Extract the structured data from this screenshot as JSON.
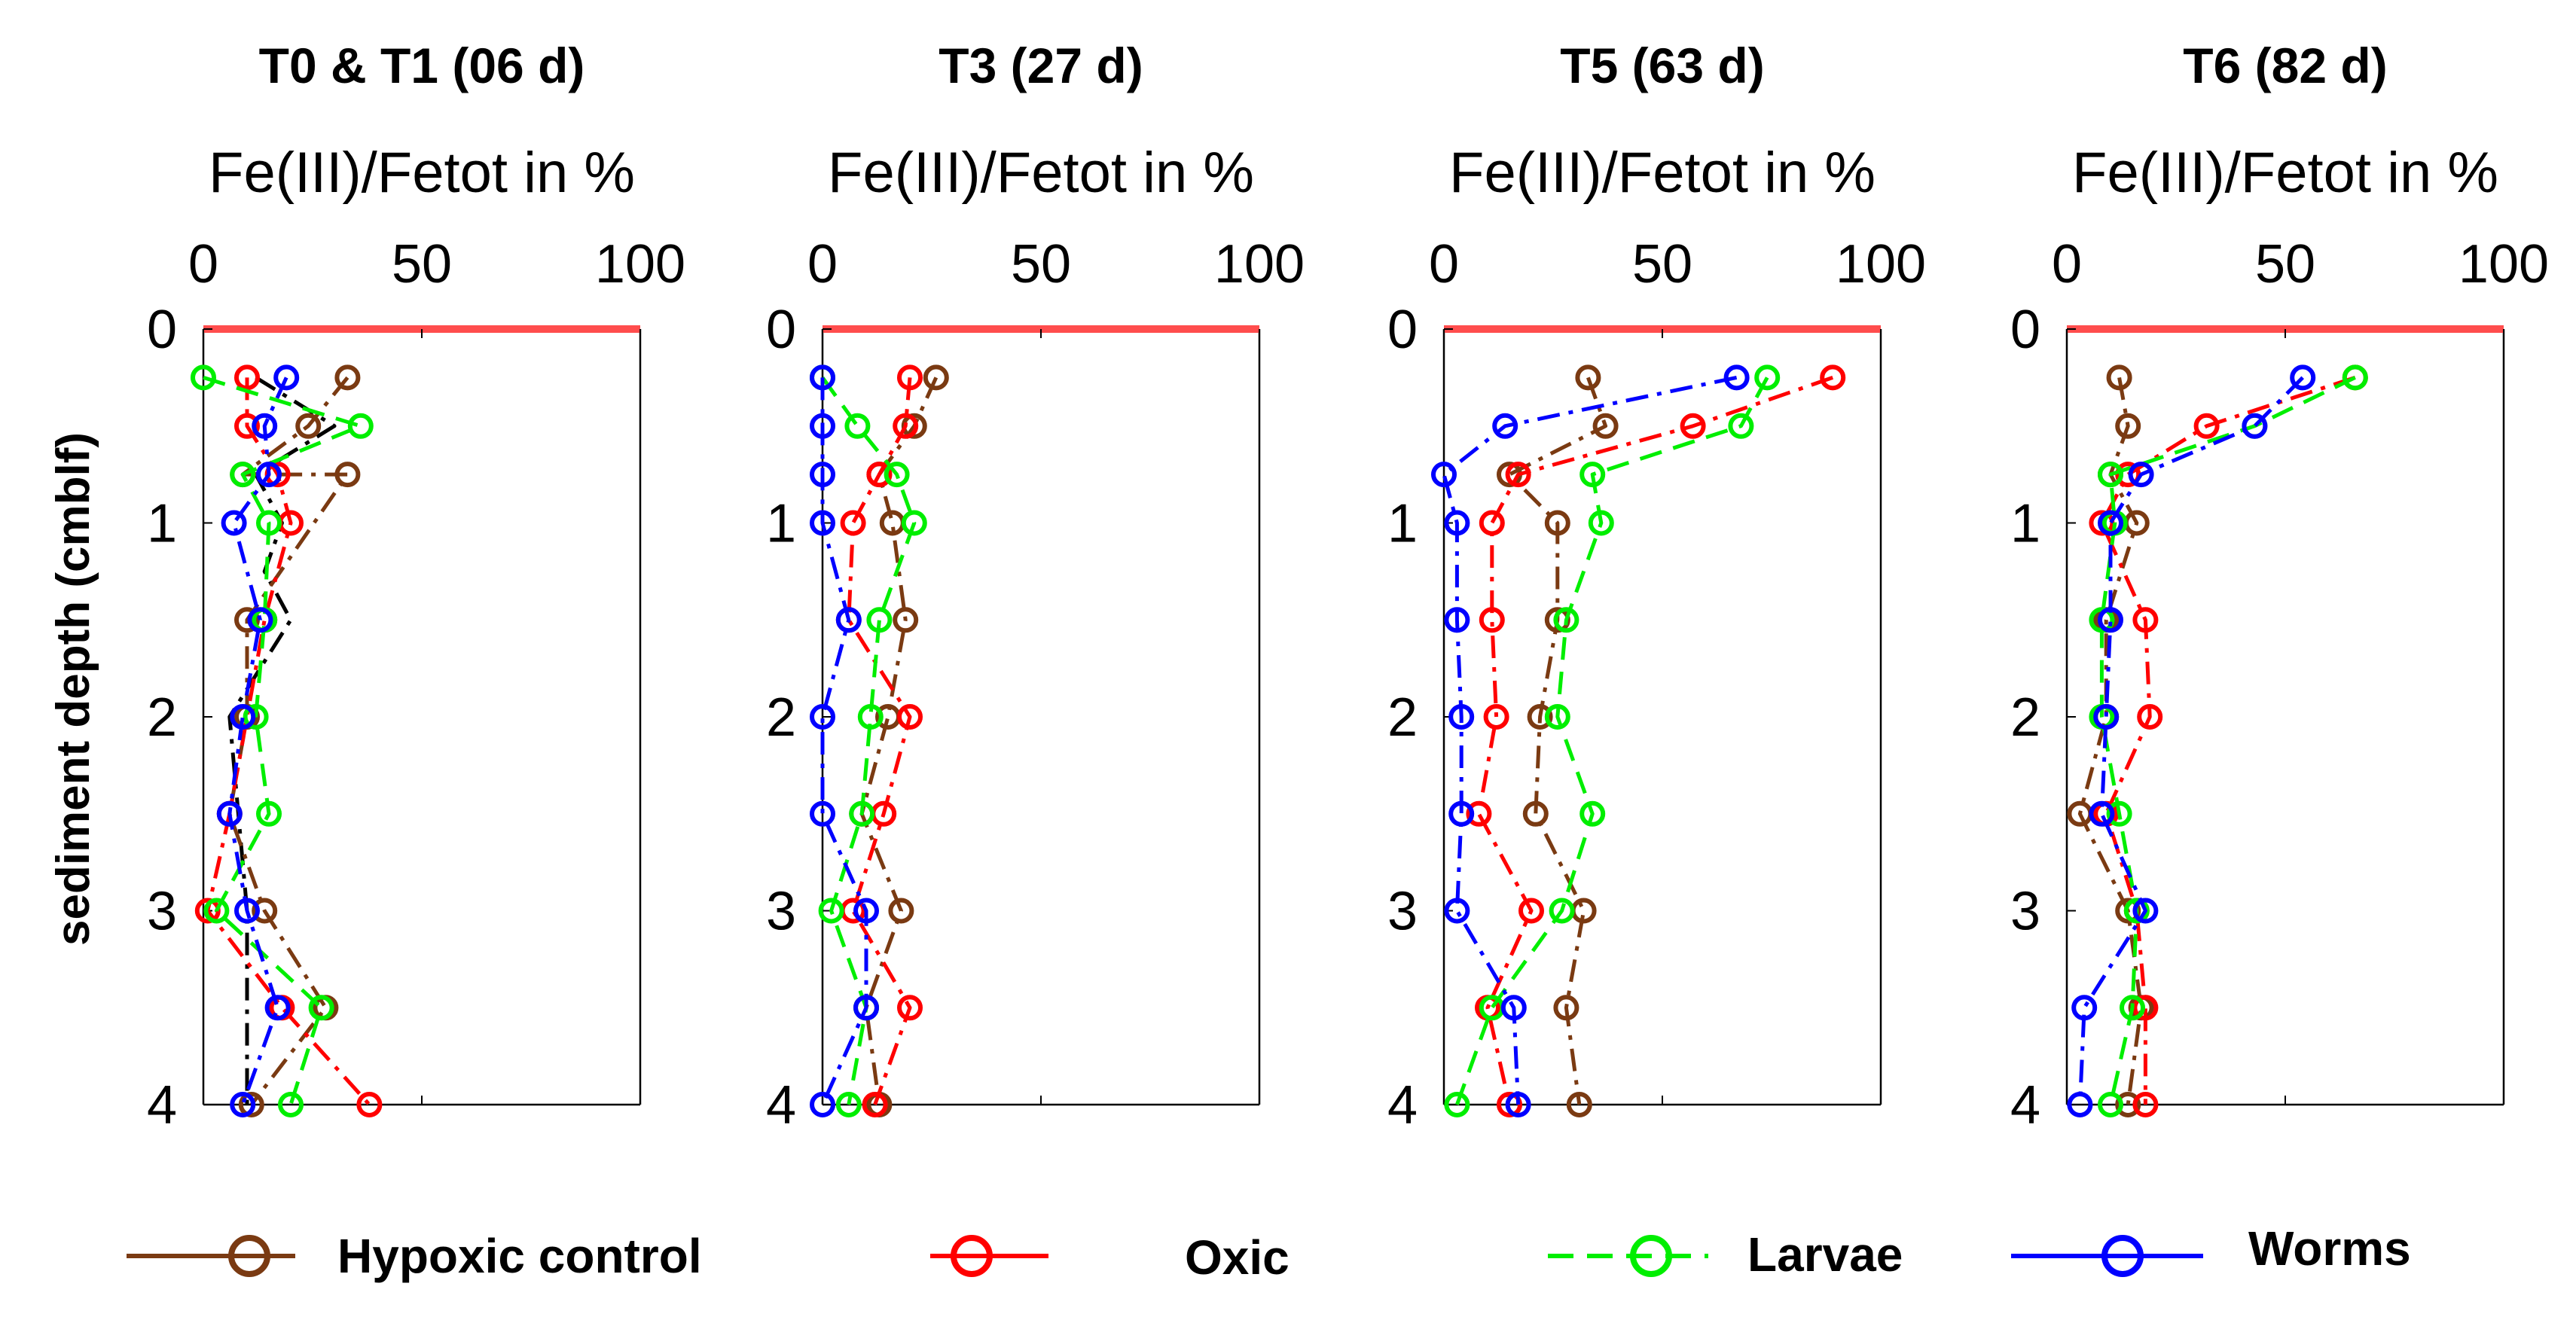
{
  "figure": {
    "ylabel": "sedient depth (cmblf)",
    "xlabel": "Fe(III)/Fetot in %"
  },
  "colors": {
    "hypoxic": "#7a3a12",
    "oxic": "#ff0000",
    "larvae": "#00ee00",
    "worms": "#0000ff",
    "t0": "#000000",
    "topline": "#ff4d4d"
  },
  "legend": [
    {
      "key": "hypoxic",
      "label": "Hypoxic control",
      "style": "solid"
    },
    {
      "key": "oxic",
      "label": "Oxic",
      "style": "solid"
    },
    {
      "key": "larvae",
      "label": "Larvae",
      "style": "dashed"
    },
    {
      "key": "worms",
      "label": "Worms",
      "style": "solid"
    }
  ],
  "chart_data": [
    {
      "type": "line",
      "title": "T0 & T1 (06 d)",
      "xlabel": "Fe(III)/Fetot in %",
      "ylabel": "sediment depth (cmblf)",
      "xlim": [
        0,
        100
      ],
      "ylim": [
        0,
        4
      ],
      "xticks": [
        0,
        50,
        100
      ],
      "yticks": [
        0,
        1,
        2,
        3,
        4
      ],
      "series": [
        {
          "name": "T0",
          "key": "t0",
          "dash": "dashdot",
          "marker": false,
          "x": [
            12,
            30,
            12,
            18,
            14,
            20,
            6,
            8,
            10,
            10,
            10
          ],
          "y": [
            0.25,
            0.5,
            0.75,
            1.0,
            1.25,
            1.5,
            2.0,
            2.5,
            3.0,
            3.5,
            4.0
          ]
        },
        {
          "name": "Hypoxic control",
          "key": "hypoxic",
          "dash": "dashdot",
          "marker": true,
          "x": [
            33,
            24,
            9,
            33,
            10,
            10,
            6,
            14,
            28,
            11
          ],
          "y": [
            0.25,
            0.5,
            0.75,
            0.75,
            1.5,
            2.0,
            2.5,
            3.0,
            3.5,
            4.0
          ]
        },
        {
          "name": "Oxic",
          "key": "oxic",
          "dash": "dashdot",
          "marker": true,
          "x": [
            10,
            10,
            17,
            20,
            14,
            6,
            1,
            18,
            38
          ],
          "y": [
            0.25,
            0.5,
            0.75,
            1.0,
            1.5,
            2.5,
            3.0,
            3.5,
            4.0
          ]
        },
        {
          "name": "Larvae",
          "key": "larvae",
          "dash": "dashed",
          "marker": true,
          "x": [
            0,
            36,
            9,
            15,
            14,
            12,
            15,
            3,
            27,
            20
          ],
          "y": [
            0.25,
            0.5,
            0.75,
            1.0,
            1.5,
            2.0,
            2.5,
            3.0,
            3.5,
            4.0
          ]
        },
        {
          "name": "Worms",
          "key": "worms",
          "dash": "dashdot",
          "marker": true,
          "x": [
            19,
            14,
            15,
            7,
            13,
            9,
            6,
            10,
            17,
            9
          ],
          "y": [
            0.25,
            0.5,
            0.75,
            1.0,
            1.5,
            2.0,
            2.5,
            3.0,
            3.5,
            4.0
          ]
        }
      ]
    },
    {
      "type": "line",
      "title": "T3 (27 d)",
      "xlabel": "Fe(III)/Fetot in %",
      "ylabel": "",
      "xlim": [
        0,
        100
      ],
      "ylim": [
        0,
        4
      ],
      "xticks": [
        0,
        50,
        100
      ],
      "yticks": [
        0,
        1,
        2,
        3,
        4
      ],
      "series": [
        {
          "name": "Hypoxic control",
          "key": "hypoxic",
          "dash": "dashdot",
          "marker": true,
          "x": [
            26,
            21,
            13,
            16,
            19,
            15,
            9,
            18,
            10,
            13
          ],
          "y": [
            0.25,
            0.5,
            0.75,
            1.0,
            1.5,
            2.0,
            2.5,
            3.0,
            3.5,
            4.0
          ]
        },
        {
          "name": "Oxic",
          "key": "oxic",
          "dash": "dashdot",
          "marker": true,
          "x": [
            20,
            19,
            13,
            7,
            6,
            20,
            14,
            7,
            20,
            12
          ],
          "y": [
            0.25,
            0.5,
            0.75,
            1.0,
            1.5,
            2.0,
            2.5,
            3.0,
            3.5,
            4.0
          ]
        },
        {
          "name": "Larvae",
          "key": "larvae",
          "dash": "dashed",
          "marker": true,
          "x": [
            0,
            8,
            17,
            21,
            13,
            11,
            9,
            2,
            10,
            6
          ],
          "y": [
            0.25,
            0.5,
            0.75,
            1.0,
            1.5,
            2.0,
            2.5,
            3.0,
            3.5,
            4.0
          ]
        },
        {
          "name": "Worms",
          "key": "worms",
          "dash": "dashdot",
          "marker": true,
          "x": [
            0,
            0,
            0,
            0,
            6,
            0,
            0,
            10,
            10,
            0
          ],
          "y": [
            0.25,
            0.5,
            0.75,
            1.0,
            1.5,
            2.0,
            2.5,
            3.0,
            3.5,
            4.0
          ]
        }
      ]
    },
    {
      "type": "line",
      "title": "T5 (63 d)",
      "xlabel": "Fe(III)/Fetot in %",
      "ylabel": "",
      "xlim": [
        0,
        100
      ],
      "ylim": [
        0,
        4
      ],
      "xticks": [
        0,
        50,
        100
      ],
      "yticks": [
        0,
        1,
        2,
        3,
        4
      ],
      "series": [
        {
          "name": "Hypoxic control",
          "key": "hypoxic",
          "dash": "dashdot",
          "marker": true,
          "x": [
            33,
            37,
            15,
            26,
            26,
            22,
            21,
            32,
            28,
            31
          ],
          "y": [
            0.25,
            0.5,
            0.75,
            1.0,
            1.5,
            2.0,
            2.5,
            3.0,
            3.5,
            4.0
          ]
        },
        {
          "name": "Oxic",
          "key": "oxic",
          "dash": "dashdot",
          "marker": true,
          "x": [
            89,
            57,
            17,
            11,
            11,
            12,
            8,
            20,
            10,
            15
          ],
          "y": [
            0.25,
            0.5,
            0.75,
            1.0,
            1.5,
            2.0,
            2.5,
            3.0,
            3.5,
            4.0
          ]
        },
        {
          "name": "Larvae",
          "key": "larvae",
          "dash": "dashed",
          "marker": true,
          "x": [
            74,
            68,
            34,
            36,
            28,
            26,
            34,
            27,
            11,
            3
          ],
          "y": [
            0.25,
            0.5,
            0.75,
            1.0,
            1.5,
            2.0,
            2.5,
            3.0,
            3.5,
            4.0
          ]
        },
        {
          "name": "Worms",
          "key": "worms",
          "dash": "dashdot",
          "marker": true,
          "x": [
            67,
            14,
            0,
            3,
            3,
            4,
            4,
            3,
            16,
            17
          ],
          "y": [
            0.25,
            0.5,
            0.75,
            1.0,
            1.5,
            2.0,
            2.5,
            3.0,
            3.5,
            4.0
          ]
        }
      ]
    },
    {
      "type": "line",
      "title": "T6 (82 d)",
      "xlabel": "Fe(III)/Fetot in %",
      "ylabel": "",
      "xlim": [
        0,
        100
      ],
      "ylim": [
        0,
        4
      ],
      "xticks": [
        0,
        50,
        100
      ],
      "yticks": [
        0,
        1,
        2,
        3,
        4
      ],
      "series": [
        {
          "name": "Hypoxic control",
          "key": "hypoxic",
          "dash": "dashdot",
          "marker": true,
          "x": [
            12,
            14,
            10,
            16,
            9,
            9,
            3,
            14,
            17,
            14
          ],
          "y": [
            0.25,
            0.5,
            0.75,
            1.0,
            1.5,
            2.0,
            2.5,
            3.0,
            3.5,
            4.0
          ]
        },
        {
          "name": "Oxic",
          "key": "oxic",
          "dash": "dashdot",
          "marker": true,
          "x": [
            66,
            32,
            14,
            8,
            18,
            19,
            9,
            16,
            18,
            18
          ],
          "y": [
            0.25,
            0.5,
            0.75,
            1.0,
            1.5,
            2.0,
            2.5,
            3.0,
            3.5,
            4.0
          ]
        },
        {
          "name": "Larvae",
          "key": "larvae",
          "dash": "dashed",
          "marker": true,
          "x": [
            66,
            43,
            10,
            11,
            8,
            8,
            12,
            16,
            15,
            10
          ],
          "y": [
            0.25,
            0.5,
            0.75,
            1.0,
            1.5,
            2.0,
            2.5,
            3.0,
            3.5,
            4.0
          ]
        },
        {
          "name": "Worms",
          "key": "worms",
          "dash": "dashdot",
          "marker": true,
          "x": [
            54,
            43,
            17,
            10,
            10,
            9,
            8,
            18,
            4,
            3
          ],
          "y": [
            0.25,
            0.5,
            0.75,
            1.0,
            1.5,
            2.0,
            2.5,
            3.0,
            3.5,
            4.0
          ]
        }
      ]
    }
  ]
}
